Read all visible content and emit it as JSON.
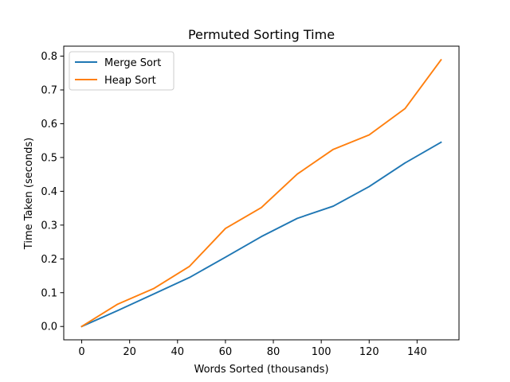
{
  "chart_data": {
    "type": "line",
    "title": "Permuted Sorting Time",
    "xlabel": "Words Sorted (thousands)",
    "ylabel": "Time Taken (seconds)",
    "xlim": [
      -7.5,
      157.5
    ],
    "ylim": [
      -0.0395,
      0.8295
    ],
    "xticks": [
      0,
      20,
      40,
      60,
      80,
      100,
      120,
      140
    ],
    "yticks": [
      0.0,
      0.1,
      0.2,
      0.3,
      0.4,
      0.5,
      0.6,
      0.7,
      0.8
    ],
    "ytick_labels": [
      "0.0",
      "0.1",
      "0.2",
      "0.3",
      "0.4",
      "0.5",
      "0.6",
      "0.7",
      "0.8"
    ],
    "x": [
      0,
      15,
      30,
      45,
      60,
      75,
      90,
      105,
      120,
      135,
      150
    ],
    "grid": false,
    "legend_position": "upper-left",
    "series": [
      {
        "name": "Merge Sort",
        "color": "#1f77b4",
        "values": [
          0.0,
          0.047,
          0.096,
          0.145,
          0.205,
          0.266,
          0.32,
          0.356,
          0.414,
          0.484,
          0.545
        ]
      },
      {
        "name": "Heap Sort",
        "color": "#ff7f0e",
        "values": [
          0.0,
          0.066,
          0.112,
          0.178,
          0.29,
          0.352,
          0.451,
          0.524,
          0.567,
          0.645,
          0.789
        ]
      }
    ]
  }
}
